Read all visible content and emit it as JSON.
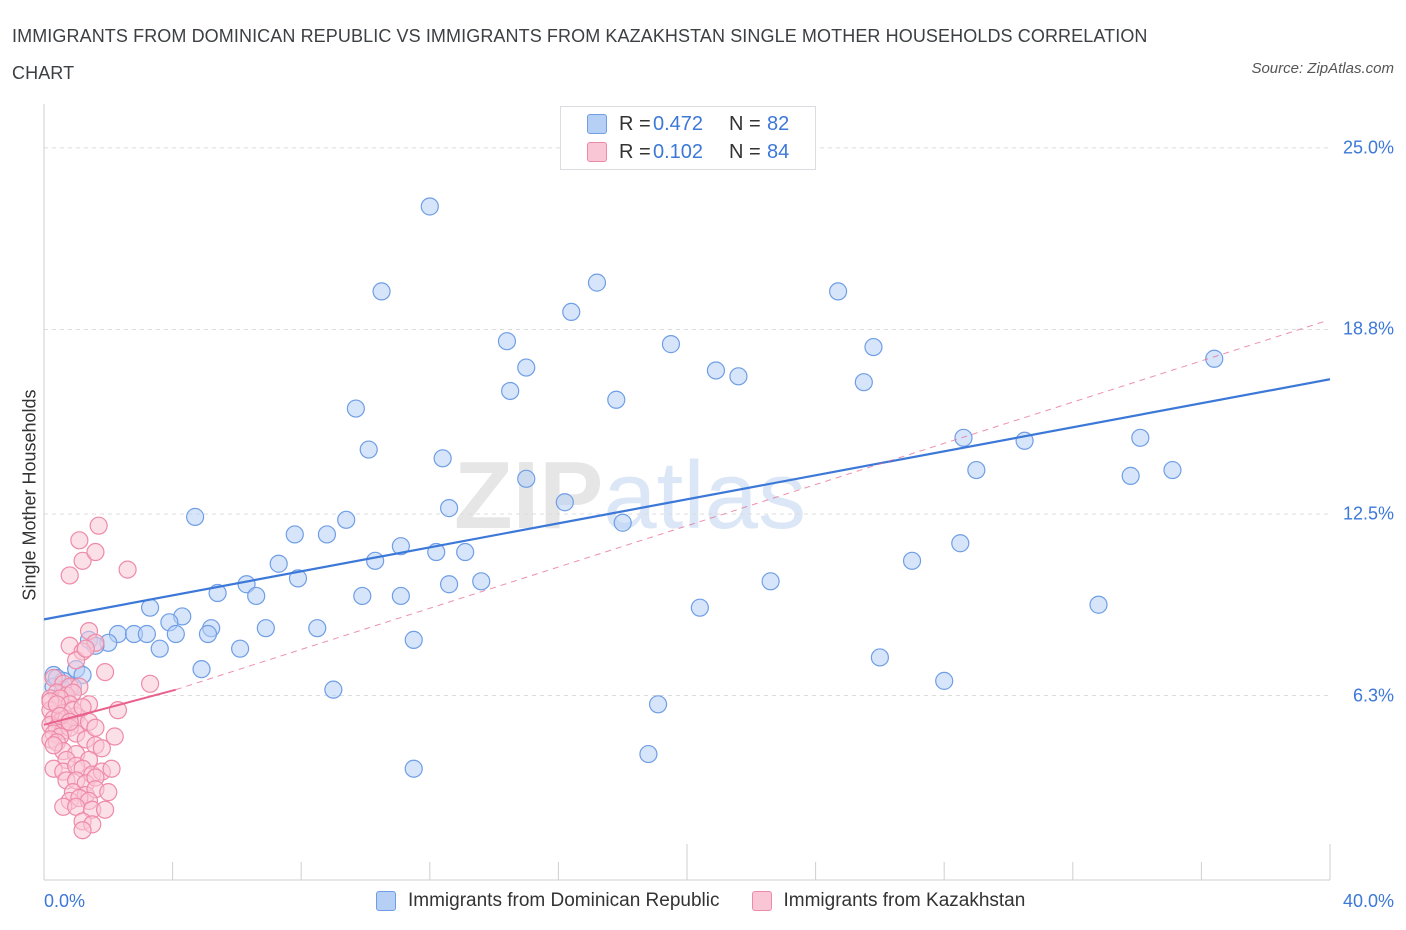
{
  "title": "IMMIGRANTS FROM DOMINICAN REPUBLIC VS IMMIGRANTS FROM KAZAKHSTAN SINGLE MOTHER HOUSEHOLDS CORRELATION CHART",
  "source": "Source: ZipAtlas.com",
  "watermark": "ZIPatlas",
  "legend": {
    "r_label": "R =",
    "n_label": "N =",
    "series": [
      {
        "r": "0.472",
        "n": "82",
        "fill": "#b6cff5",
        "stroke": "#6f9ee6"
      },
      {
        "r": "0.102",
        "n": "84",
        "fill": "#f9c6d5",
        "stroke": "#ee8aa8"
      }
    ]
  },
  "chart_data": {
    "type": "scatter",
    "ylabel": "Single Mother Households",
    "xlim": [
      0,
      40
    ],
    "ylim": [
      0,
      26.5
    ],
    "x_tick_labels": [
      {
        "value": 0,
        "label": "0.0%"
      },
      {
        "value": 40,
        "label": "40.0%"
      }
    ],
    "y_ticks": [
      {
        "value": 6.3,
        "label": "6.3%"
      },
      {
        "value": 12.5,
        "label": "12.5%"
      },
      {
        "value": 18.8,
        "label": "18.8%"
      },
      {
        "value": 25.0,
        "label": "25.0%"
      }
    ],
    "grid": "horizontal dashed",
    "series": [
      {
        "name": "Immigrants from Dominican Republic",
        "color": "#3c78d8",
        "fill": "#b6cff5",
        "stroke": "#6f9ee6",
        "trend": {
          "x": [
            0,
            40
          ],
          "y": [
            8.9,
            17.1
          ],
          "style": "solid"
        },
        "points": [
          [
            12.0,
            23.0
          ],
          [
            10.5,
            20.1
          ],
          [
            16.4,
            19.4
          ],
          [
            17.2,
            20.4
          ],
          [
            24.7,
            20.1
          ],
          [
            14.4,
            18.4
          ],
          [
            19.5,
            18.3
          ],
          [
            25.8,
            18.2
          ],
          [
            36.4,
            17.8
          ],
          [
            15.0,
            17.5
          ],
          [
            20.9,
            17.4
          ],
          [
            21.6,
            17.2
          ],
          [
            14.5,
            16.7
          ],
          [
            17.8,
            16.4
          ],
          [
            25.5,
            17.0
          ],
          [
            9.7,
            16.1
          ],
          [
            28.6,
            15.1
          ],
          [
            30.5,
            15.0
          ],
          [
            34.1,
            15.1
          ],
          [
            10.1,
            14.7
          ],
          [
            12.4,
            14.4
          ],
          [
            29.0,
            14.0
          ],
          [
            33.8,
            13.8
          ],
          [
            35.1,
            14.0
          ],
          [
            15.0,
            13.7
          ],
          [
            16.2,
            12.9
          ],
          [
            12.6,
            12.7
          ],
          [
            18.0,
            12.2
          ],
          [
            4.7,
            12.4
          ],
          [
            9.4,
            12.3
          ],
          [
            7.8,
            11.8
          ],
          [
            8.8,
            11.8
          ],
          [
            11.1,
            11.4
          ],
          [
            12.2,
            11.2
          ],
          [
            13.1,
            11.2
          ],
          [
            10.3,
            10.9
          ],
          [
            27.0,
            10.9
          ],
          [
            28.5,
            11.5
          ],
          [
            7.3,
            10.8
          ],
          [
            7.9,
            10.3
          ],
          [
            12.6,
            10.1
          ],
          [
            13.6,
            10.2
          ],
          [
            22.6,
            10.2
          ],
          [
            6.3,
            10.1
          ],
          [
            5.4,
            9.8
          ],
          [
            6.6,
            9.7
          ],
          [
            9.9,
            9.7
          ],
          [
            11.1,
            9.7
          ],
          [
            20.4,
            9.3
          ],
          [
            32.8,
            9.4
          ],
          [
            3.3,
            9.3
          ],
          [
            4.3,
            9.0
          ],
          [
            3.9,
            8.8
          ],
          [
            5.2,
            8.6
          ],
          [
            4.1,
            8.4
          ],
          [
            5.1,
            8.4
          ],
          [
            6.9,
            8.6
          ],
          [
            8.5,
            8.6
          ],
          [
            2.3,
            8.4
          ],
          [
            2.8,
            8.4
          ],
          [
            3.2,
            8.4
          ],
          [
            1.4,
            8.2
          ],
          [
            2.0,
            8.1
          ],
          [
            3.6,
            7.9
          ],
          [
            6.1,
            7.9
          ],
          [
            11.5,
            8.2
          ],
          [
            26.0,
            7.6
          ],
          [
            1.0,
            7.2
          ],
          [
            4.9,
            7.2
          ],
          [
            1.2,
            7.0
          ],
          [
            0.3,
            7.0
          ],
          [
            0.6,
            6.8
          ],
          [
            0.9,
            6.6
          ],
          [
            0.6,
            6.5
          ],
          [
            0.3,
            6.6
          ],
          [
            28.0,
            6.8
          ],
          [
            9.0,
            6.5
          ],
          [
            19.1,
            6.0
          ],
          [
            18.8,
            4.3
          ],
          [
            11.5,
            3.8
          ],
          [
            0.4,
            6.9
          ],
          [
            1.6,
            8.0
          ]
        ]
      },
      {
        "name": "Immigrants from Kazakhstan",
        "color": "#e8618c",
        "fill": "#f9c6d5",
        "stroke": "#ee8aa8",
        "trend": {
          "x": [
            0,
            4.1
          ],
          "y": [
            5.3,
            6.5
          ],
          "style": "solid"
        },
        "trend_extended": {
          "x": [
            4.1,
            39.9
          ],
          "y": [
            6.5,
            19.1
          ],
          "style": "dashed"
        },
        "points": [
          [
            1.1,
            11.6
          ],
          [
            1.7,
            12.1
          ],
          [
            1.2,
            10.9
          ],
          [
            1.6,
            11.2
          ],
          [
            0.8,
            10.4
          ],
          [
            2.6,
            10.6
          ],
          [
            1.4,
            8.5
          ],
          [
            1.6,
            8.1
          ],
          [
            0.8,
            8.0
          ],
          [
            1.2,
            7.8
          ],
          [
            1.0,
            7.5
          ],
          [
            1.9,
            7.1
          ],
          [
            1.3,
            7.9
          ],
          [
            3.3,
            6.7
          ],
          [
            0.3,
            6.9
          ],
          [
            0.6,
            6.7
          ],
          [
            0.8,
            6.6
          ],
          [
            1.1,
            6.6
          ],
          [
            0.4,
            6.4
          ],
          [
            0.7,
            6.3
          ],
          [
            0.9,
            6.4
          ],
          [
            0.2,
            6.2
          ],
          [
            0.5,
            6.2
          ],
          [
            0.8,
            6.0
          ],
          [
            1.4,
            6.0
          ],
          [
            0.2,
            5.8
          ],
          [
            0.6,
            5.7
          ],
          [
            1.0,
            5.6
          ],
          [
            2.3,
            5.8
          ],
          [
            0.3,
            5.5
          ],
          [
            0.5,
            5.4
          ],
          [
            0.7,
            5.5
          ],
          [
            1.1,
            5.3
          ],
          [
            1.4,
            5.4
          ],
          [
            0.2,
            5.3
          ],
          [
            0.4,
            5.2
          ],
          [
            0.6,
            5.1
          ],
          [
            0.8,
            5.2
          ],
          [
            1.0,
            5.0
          ],
          [
            0.3,
            5.0
          ],
          [
            0.5,
            4.9
          ],
          [
            0.2,
            4.8
          ],
          [
            0.4,
            4.7
          ],
          [
            1.3,
            4.8
          ],
          [
            2.2,
            4.9
          ],
          [
            0.6,
            4.4
          ],
          [
            1.0,
            4.3
          ],
          [
            1.6,
            4.6
          ],
          [
            0.7,
            4.1
          ],
          [
            1.4,
            4.1
          ],
          [
            1.8,
            4.5
          ],
          [
            0.3,
            3.8
          ],
          [
            0.6,
            3.7
          ],
          [
            1.0,
            3.9
          ],
          [
            1.2,
            3.8
          ],
          [
            1.5,
            3.6
          ],
          [
            1.8,
            3.7
          ],
          [
            2.1,
            3.8
          ],
          [
            0.7,
            3.4
          ],
          [
            1.0,
            3.4
          ],
          [
            1.3,
            3.3
          ],
          [
            1.6,
            3.5
          ],
          [
            0.9,
            3.0
          ],
          [
            1.3,
            2.9
          ],
          [
            1.6,
            3.1
          ],
          [
            2.0,
            3.0
          ],
          [
            0.8,
            2.7
          ],
          [
            1.1,
            2.8
          ],
          [
            1.4,
            2.7
          ],
          [
            0.6,
            2.5
          ],
          [
            1.0,
            2.5
          ],
          [
            1.5,
            2.4
          ],
          [
            1.9,
            2.4
          ],
          [
            1.2,
            2.0
          ],
          [
            1.5,
            1.9
          ],
          [
            1.2,
            1.7
          ],
          [
            0.2,
            6.1
          ],
          [
            0.4,
            6.0
          ],
          [
            0.9,
            5.8
          ],
          [
            1.2,
            5.9
          ],
          [
            0.5,
            5.6
          ],
          [
            0.8,
            5.4
          ],
          [
            1.6,
            5.2
          ],
          [
            0.3,
            4.6
          ]
        ]
      }
    ]
  }
}
